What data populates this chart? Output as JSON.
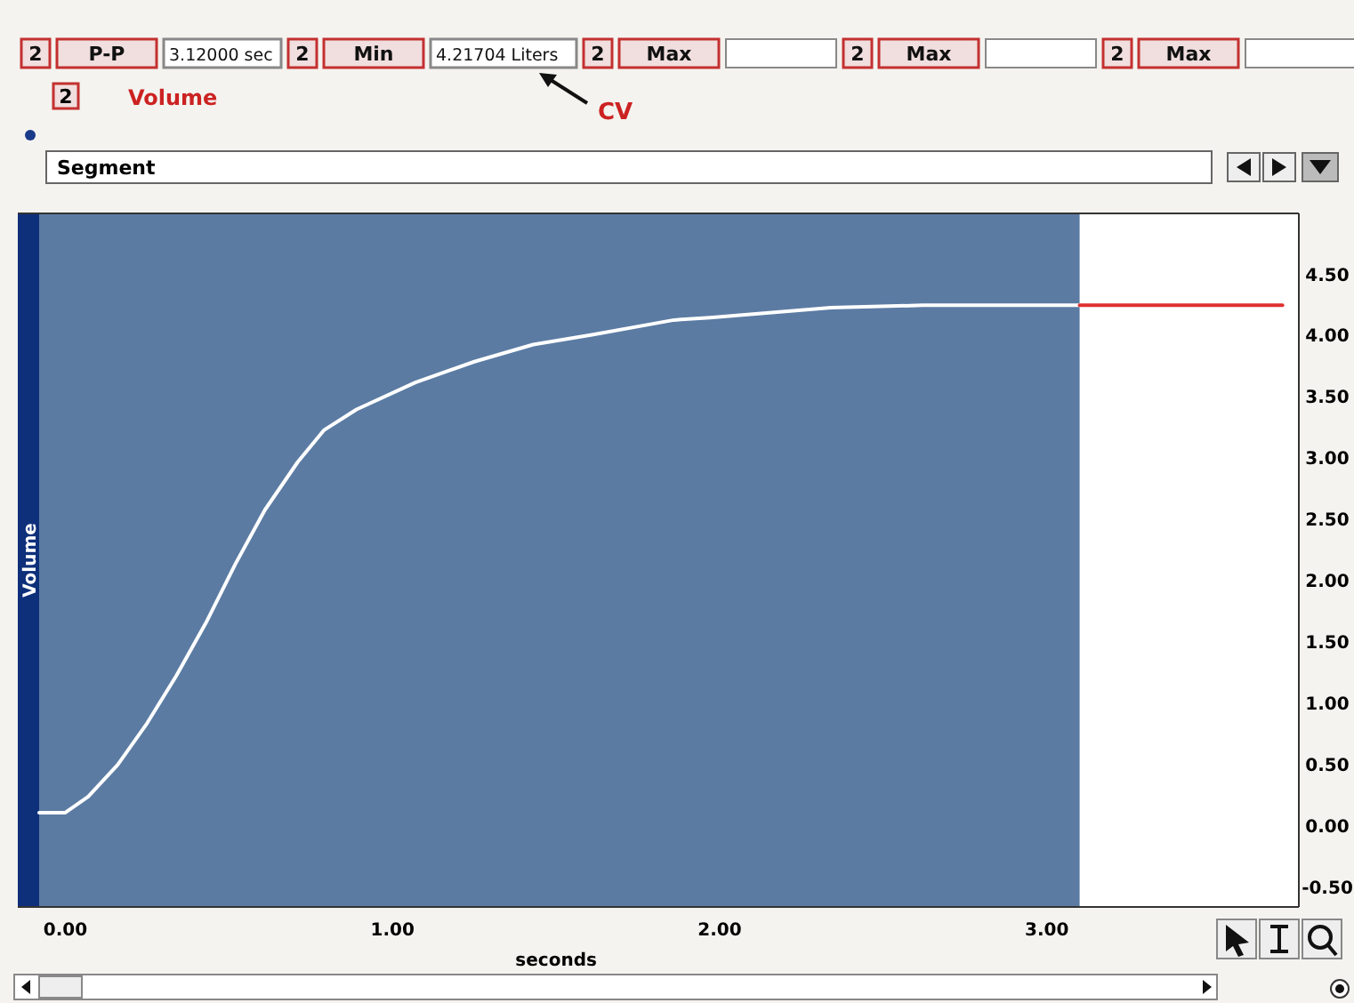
{
  "chart_data": {
    "type": "line",
    "title": "Volume",
    "xlabel": "seconds",
    "ylabel": "Volume",
    "annotations": [
      "2",
      "P-P",
      "3.12000 sec",
      "2",
      "Min",
      "4.21704 Liters",
      "2",
      "Max",
      "2",
      "Max",
      "2",
      "Max",
      "2",
      "CV",
      "Segment"
    ],
    "xlim": [
      -0.08,
      3.77
    ],
    "ylim": [
      -0.67,
      4.99
    ],
    "xticks": [
      {
        "value": 0,
        "label": "0.00"
      },
      {
        "value": 1,
        "label": "1.00"
      },
      {
        "value": 2,
        "label": "2.00"
      },
      {
        "value": 3,
        "label": "3.00"
      }
    ],
    "yticks": [
      {
        "value": -0.5,
        "label": "-0.50"
      },
      {
        "value": 0,
        "label": "0.00"
      },
      {
        "value": 0.5,
        "label": "0.50"
      },
      {
        "value": 1,
        "label": "1.00"
      },
      {
        "value": 1.5,
        "label": "1.50"
      },
      {
        "value": 2,
        "label": "2.00"
      },
      {
        "value": 2.5,
        "label": "2.50"
      },
      {
        "value": 3,
        "label": "3.00"
      },
      {
        "value": 3.5,
        "label": "3.50"
      },
      {
        "value": 4,
        "label": "4.00"
      },
      {
        "value": 4.5,
        "label": "4.50"
      }
    ],
    "bands": [
      {
        "axis": "x",
        "from": -0.08,
        "to": 3.1,
        "color": "#5b7ba3"
      }
    ],
    "series": [
      {
        "color": "#ffffff",
        "x": [
          -0.08,
          0,
          0.07,
          0.16,
          0.25,
          0.34,
          0.43,
          0.52,
          0.61,
          0.71,
          0.79,
          0.89,
          1.07,
          1.25,
          1.43,
          1.61,
          1.86,
          1.97,
          2.34,
          2.62,
          3.1
        ],
        "values": [
          0.1,
          0.1,
          0.23,
          0.49,
          0.83,
          1.22,
          1.65,
          2.13,
          2.57,
          2.96,
          3.22,
          3.39,
          3.61,
          3.78,
          3.92,
          4.0,
          4.12,
          4.14,
          4.22,
          4.24,
          4.24
        ]
      },
      {
        "color": "#e03030",
        "x": [
          3.1,
          3.72
        ],
        "values": [
          4.24,
          4.24
        ]
      }
    ]
  }
}
